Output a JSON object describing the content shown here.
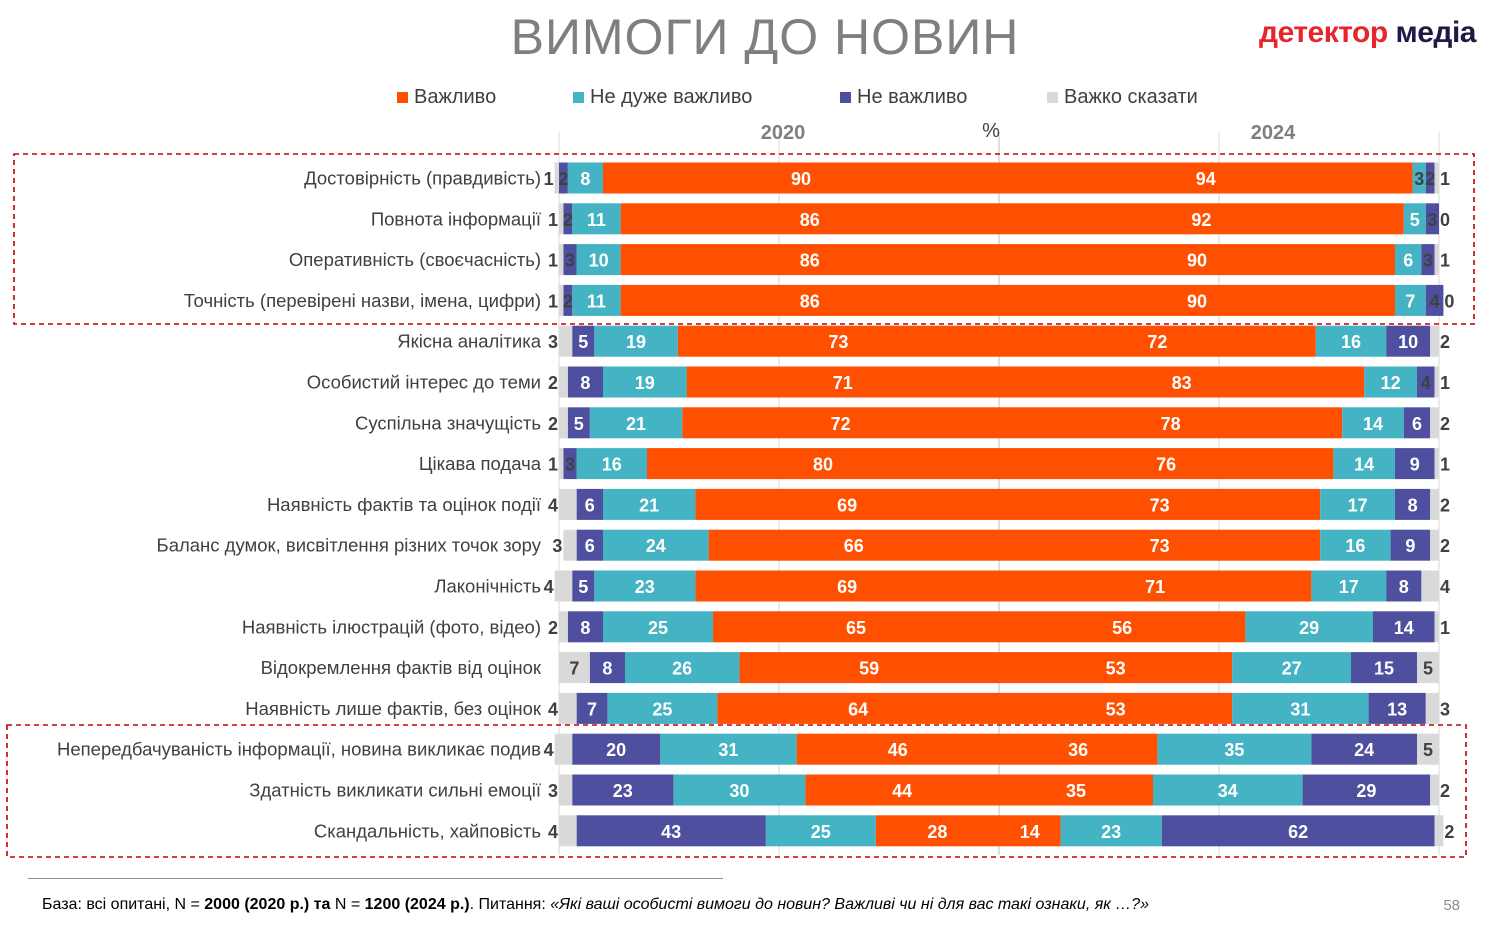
{
  "title": "ВИМОГИ ДО НОВИН",
  "logo": {
    "part1": "детектор",
    "part2": "медіа"
  },
  "legend": [
    {
      "label": "Важливо",
      "color": "#fe5000"
    },
    {
      "label": "Не дуже важливо",
      "color": "#44b3c3"
    },
    {
      "label": "Не важливо",
      "color": "#4e4f9e"
    },
    {
      "label": "Важко сказати",
      "color": "#d9d9d9"
    }
  ],
  "footer": {
    "base": "База: всі опитані, N = ",
    "n2020": "2000 (2020 р.) та",
    "n_mid": " N = ",
    "n2024": "1200 (2024 р.)",
    "q_label": ". Питання: ",
    "question": "«Які ваші особисті вимоги до новин? Важливі чи ні для вас такі ознаки, як …?»"
  },
  "page_number": "58",
  "chart_data": {
    "type": "bar",
    "subtype": "diverging-stacked-horizontal",
    "unit": "%",
    "panels": [
      "2020",
      "2024"
    ],
    "xlim": [
      -100,
      100
    ],
    "grid": true,
    "legend_position": "top",
    "highlight_groups": [
      [
        0,
        3
      ],
      [
        14,
        16
      ]
    ],
    "series": [
      "Важливо",
      "Не дуже важливо",
      "Не важливо",
      "Важко сказати"
    ],
    "categories": [
      {
        "label": "Достовірність (правдивість)",
        "y2020": [
          90,
          8,
          2,
          1
        ],
        "y2024": [
          94,
          3,
          2,
          1
        ]
      },
      {
        "label": "Повнота інформації",
        "y2020": [
          86,
          11,
          2,
          1
        ],
        "y2024": [
          92,
          5,
          3,
          0
        ]
      },
      {
        "label": "Оперативність (своєчасність)",
        "y2020": [
          86,
          10,
          3,
          1
        ],
        "y2024": [
          90,
          6,
          3,
          1
        ]
      },
      {
        "label": "Точність (перевірені назви, імена, цифри)",
        "y2020": [
          86,
          11,
          2,
          1
        ],
        "y2024": [
          90,
          7,
          4,
          0
        ]
      },
      {
        "label": "Якісна аналітика",
        "y2020": [
          73,
          19,
          5,
          3
        ],
        "y2024": [
          72,
          16,
          10,
          2
        ]
      },
      {
        "label": "Особистий інтерес до теми",
        "y2020": [
          71,
          19,
          8,
          2
        ],
        "y2024": [
          83,
          12,
          4,
          1
        ]
      },
      {
        "label": "Суспільна значущість",
        "y2020": [
          72,
          21,
          5,
          2
        ],
        "y2024": [
          78,
          14,
          6,
          2
        ]
      },
      {
        "label": "Цікава подача",
        "y2020": [
          80,
          16,
          3,
          1
        ],
        "y2024": [
          76,
          14,
          9,
          1
        ]
      },
      {
        "label": "Наявність фактів та оцінок події",
        "y2020": [
          69,
          21,
          6,
          4
        ],
        "y2024": [
          73,
          17,
          8,
          2
        ]
      },
      {
        "label": "Баланс думок, висвітлення різних точок зору",
        "y2020": [
          66,
          24,
          6,
          3
        ],
        "y2024": [
          73,
          16,
          9,
          2
        ]
      },
      {
        "label": "Лаконічність",
        "y2020": [
          69,
          23,
          5,
          4
        ],
        "y2024": [
          71,
          17,
          8,
          4
        ]
      },
      {
        "label": "Наявність ілюстрацій (фото, відео)",
        "y2020": [
          65,
          25,
          8,
          2
        ],
        "y2024": [
          56,
          29,
          14,
          1
        ]
      },
      {
        "label": "Відокремлення фактів від оцінок",
        "y2020": [
          59,
          26,
          8,
          7
        ],
        "y2024": [
          53,
          27,
          15,
          5
        ]
      },
      {
        "label": "Наявність лише фактів, без оцінок",
        "y2020": [
          64,
          25,
          7,
          4
        ],
        "y2024": [
          53,
          31,
          13,
          3
        ]
      },
      {
        "label": "Непередбачуваність інформації, новина викликає подив",
        "y2020": [
          46,
          31,
          20,
          4
        ],
        "y2024": [
          36,
          35,
          24,
          5
        ]
      },
      {
        "label": "Здатність викликати сильні емоції",
        "y2020": [
          44,
          30,
          23,
          3
        ],
        "y2024": [
          35,
          34,
          29,
          2
        ]
      },
      {
        "label": "Скандальність, хайповість",
        "y2020": [
          28,
          25,
          43,
          4
        ],
        "y2024": [
          14,
          23,
          62,
          2
        ]
      }
    ]
  }
}
